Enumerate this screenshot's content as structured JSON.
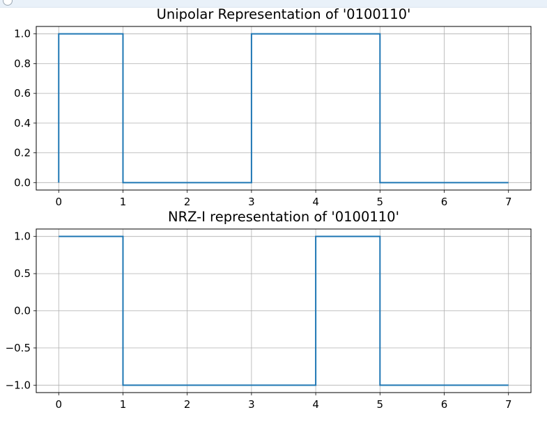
{
  "window": {
    "icon": "app-icon"
  },
  "colors": {
    "line": "#1f77b4",
    "grid": "#b0b0b0",
    "axes": "#000000"
  },
  "chart_data": [
    {
      "type": "line",
      "step": "post",
      "title": "Unipolar Representation of '0100110'",
      "xlabel": "",
      "ylabel": "",
      "xlim": [
        -0.35,
        7.35
      ],
      "ylim": [
        -0.05,
        1.05
      ],
      "xticks": [
        0,
        1,
        2,
        3,
        4,
        5,
        6,
        7
      ],
      "xtick_labels": [
        "0",
        "1",
        "2",
        "3",
        "4",
        "5",
        "6",
        "7"
      ],
      "yticks": [
        0.0,
        0.2,
        0.4,
        0.6,
        0.8,
        1.0
      ],
      "ytick_labels": [
        "0.0",
        "0.2",
        "0.4",
        "0.6",
        "0.8",
        "1.0"
      ],
      "grid": true,
      "series": [
        {
          "x": [
            0,
            0,
            1,
            1,
            3,
            3,
            5,
            5,
            7
          ],
          "y": [
            0,
            1,
            1,
            0,
            0,
            1,
            1,
            0,
            0
          ]
        }
      ]
    },
    {
      "type": "line",
      "step": "post",
      "title": "NRZ-I representation of '0100110'",
      "xlabel": "",
      "ylabel": "",
      "xlim": [
        -0.35,
        7.35
      ],
      "ylim": [
        -1.1,
        1.1
      ],
      "xticks": [
        0,
        1,
        2,
        3,
        4,
        5,
        6,
        7
      ],
      "xtick_labels": [
        "0",
        "1",
        "2",
        "3",
        "4",
        "5",
        "6",
        "7"
      ],
      "yticks": [
        -1.0,
        -0.5,
        0.0,
        0.5,
        1.0
      ],
      "ytick_labels": [
        "−1.0",
        "−0.5",
        "0.0",
        "0.5",
        "1.0"
      ],
      "grid": true,
      "series": [
        {
          "x": [
            0,
            1,
            1,
            4,
            4,
            5,
            5,
            7
          ],
          "y": [
            1,
            1,
            -1,
            -1,
            1,
            1,
            -1,
            -1
          ]
        }
      ]
    }
  ]
}
